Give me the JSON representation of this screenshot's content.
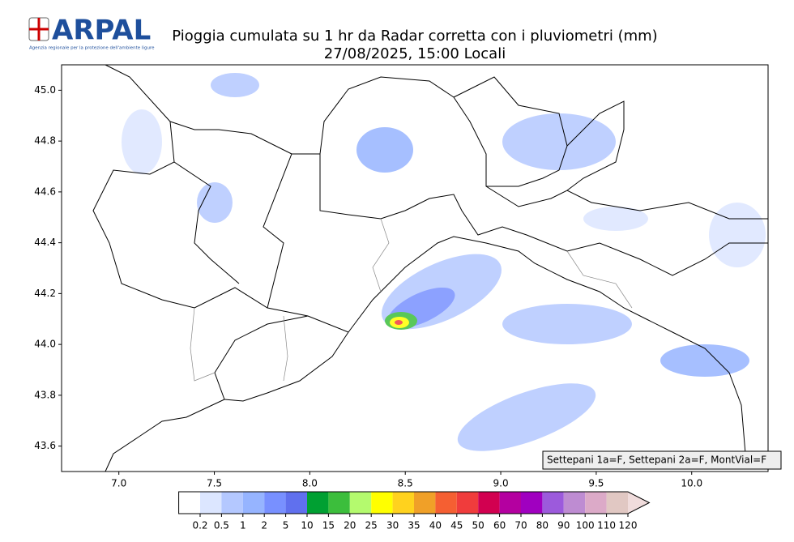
{
  "logo": {
    "name": "ARPAL",
    "tagline": "Agenzia regionale per la protezione dell'ambiente ligure"
  },
  "title": [
    "Pioggia cumulata su 1 hr da Radar corretta con i pluviometri (mm)",
    "27/08/2025, 15:00 Locali"
  ],
  "map": {
    "xlim": [
      6.7,
      10.4
    ],
    "ylim": [
      43.5,
      45.1
    ],
    "xticks": [
      {
        "value": 7,
        "label": "7.0"
      },
      {
        "value": 7.5,
        "label": "7.5"
      },
      {
        "value": 8,
        "label": "8.0"
      },
      {
        "value": 8.5,
        "label": "8.5"
      },
      {
        "value": 9,
        "label": "9.0"
      },
      {
        "value": 9.5,
        "label": "9.5"
      },
      {
        "value": 10,
        "label": "10.0"
      }
    ],
    "yticks": [
      {
        "value": 43.6,
        "label": "43.6"
      },
      {
        "value": 43.8,
        "label": "43.8"
      },
      {
        "value": 44,
        "label": "44.0"
      },
      {
        "value": 44.2,
        "label": "44.2"
      },
      {
        "value": 44.4,
        "label": "44.4"
      },
      {
        "value": 44.6,
        "label": "44.6"
      },
      {
        "value": 44.8,
        "label": "44.8"
      },
      {
        "value": 45,
        "label": "45.0"
      }
    ],
    "annotation": "Settepani 1a=F, Settepani 2a=F, MontVial=F"
  },
  "colorbar": {
    "levels": [
      0.2,
      0.5,
      1,
      2,
      5,
      10,
      15,
      20,
      25,
      30,
      35,
      40,
      45,
      50,
      60,
      70,
      80,
      90,
      100,
      110,
      120
    ],
    "colors": [
      "#ffffff",
      "#dce6ff",
      "#b4c8ff",
      "#96b4ff",
      "#7890ff",
      "#6070ee",
      "#00a032",
      "#3cbe3c",
      "#b4fa6e",
      "#ffff00",
      "#ffd21e",
      "#f0a028",
      "#f55f32",
      "#f03c3c",
      "#d20050",
      "#b400a0",
      "#a000c0",
      "#9c5adc",
      "#be8cd2",
      "#dcaac8",
      "#e1c8c3",
      "#f0dcdc"
    ]
  }
}
